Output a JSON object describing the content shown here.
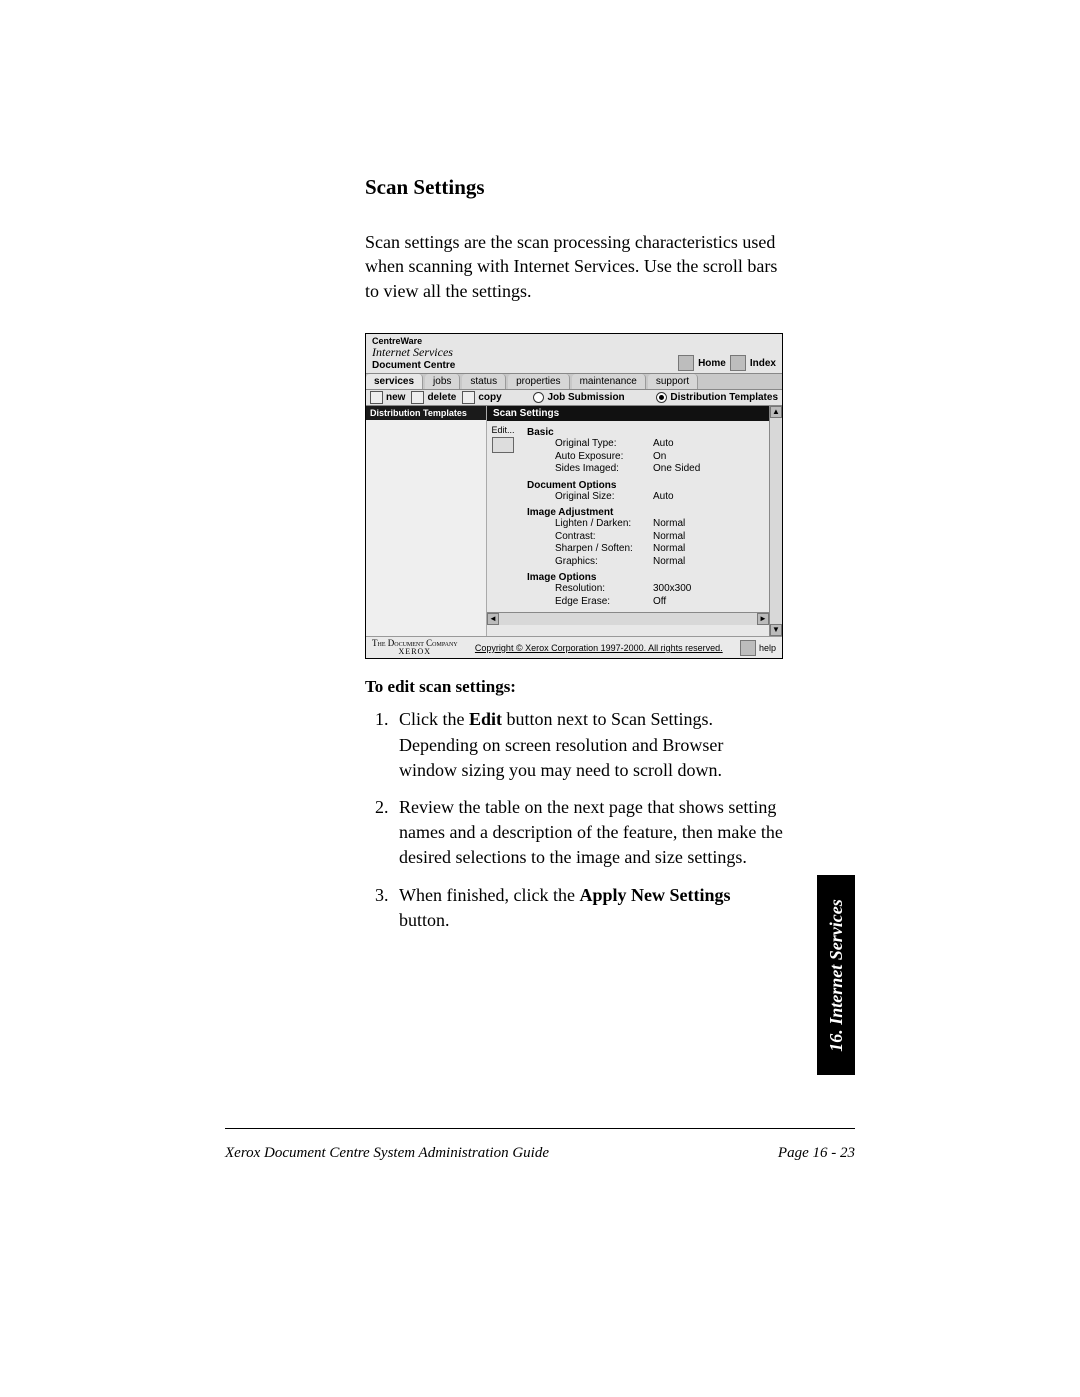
{
  "heading": "Scan Settings",
  "intro": "Scan settings are the scan processing characteristics used when scanning with Internet Services. Use the scroll bars to view all the settings.",
  "edit_heading": "To edit scan settings:",
  "steps": {
    "s1a": "Click the ",
    "s1b": "Edit",
    "s1c": " button next to Scan Settings.  Depending on screen resolution and Browser window sizing you may need to scroll down.",
    "s2": "Review the table on the next page that shows setting names and a description of the feature, then make the desired selections to the image and size settings.",
    "s3a": "When finished, click the ",
    "s3b": "Apply New Settings",
    "s3c": " button."
  },
  "sideTab": "16. Internet Services",
  "footer": {
    "left": "Xerox Document Centre System Administration Guide",
    "right": "Page 16 - 23"
  },
  "screenshot": {
    "brand1": "CentreWare",
    "brand2": "Internet Services",
    "brand3": "Document Centre",
    "home": "Home",
    "index": "Index",
    "tabs": {
      "services": "services",
      "jobs": "jobs",
      "status": "status",
      "properties": "properties",
      "maintenance": "maintenance",
      "support": "support"
    },
    "subtabs": {
      "new": "new",
      "delete": "delete",
      "copy": "copy",
      "jobSubmission": "Job Submission",
      "distTemplates": "Distribution Templates"
    },
    "leftPaneTitle": "Distribution Templates",
    "editLabel": "Edit...",
    "ssTitle": "Scan Settings",
    "basic": {
      "title": "Basic",
      "originalType": "Original Type:",
      "originalTypeV": "Auto",
      "autoExposure": "Auto Exposure:",
      "autoExposureV": "On",
      "sidesImaged": "Sides Imaged:",
      "sidesImagedV": "One Sided"
    },
    "docOptions": {
      "title": "Document Options",
      "originalSize": "Original Size:",
      "originalSizeV": "Auto"
    },
    "imageAdj": {
      "title": "Image Adjustment",
      "ld": "Lighten / Darken:",
      "ldV": "Normal",
      "contrast": "Contrast:",
      "contrastV": "Normal",
      "ss": "Sharpen / Soften:",
      "ssV": "Normal",
      "graphics": "Graphics:",
      "graphicsV": "Normal"
    },
    "imageOpt": {
      "title": "Image Options",
      "resolution": "Resolution:",
      "resolutionV": "300x300",
      "edgeErase": "Edge Erase:",
      "edgeEraseV": "Off"
    },
    "footer": {
      "company1": "The Document Company",
      "company2": "XEROX",
      "copyright": "Copyright © Xerox Corporation 1997-2000. All rights reserved.",
      "help": "help"
    }
  }
}
